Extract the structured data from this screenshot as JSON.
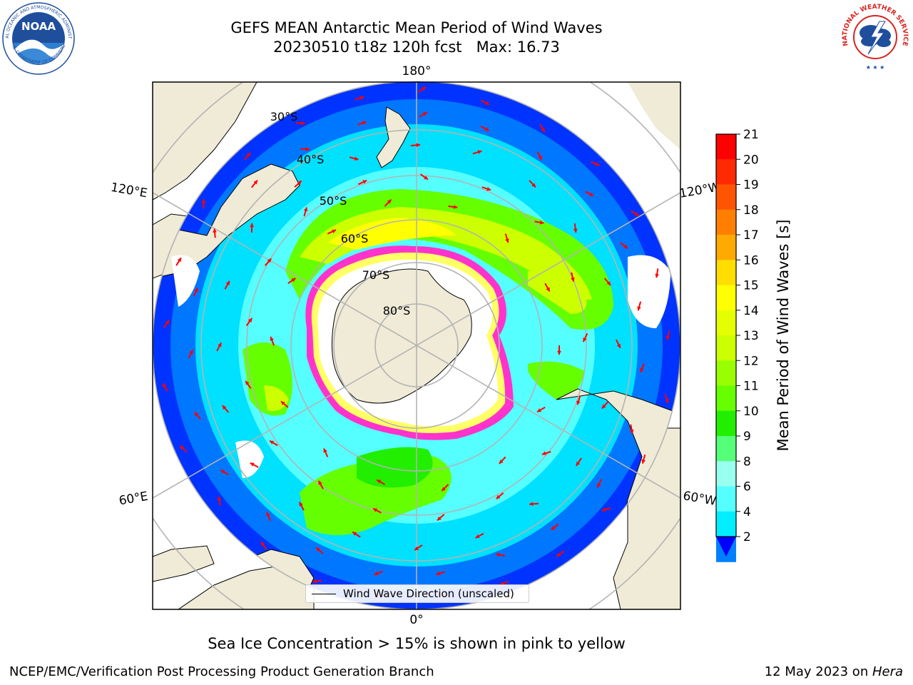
{
  "header": {
    "title_line1": "GEFS MEAN Antarctic Mean Period of Wind Waves",
    "title_line2": "20230510 t18z 120h fcst   Max: 16.73"
  },
  "map": {
    "projection": "south-polar-stereographic",
    "longitude_labels": {
      "top": "180°",
      "bottom": "0°",
      "upper_left": "120°E",
      "upper_right": "120°W",
      "lower_left": "60°E",
      "lower_right": "60°W"
    },
    "latitude_labels": [
      "30°S",
      "40°S",
      "50°S",
      "60°S",
      "70°S",
      "80°S"
    ],
    "legend_label": "Wind Wave Direction (unscaled)",
    "colors": {
      "land": "#efebd7",
      "sea_ice_low": "#ff33cc",
      "sea_ice_high": "#ffff66",
      "arrows": "#ff0000",
      "graticule": "#b3b3b3"
    },
    "ice_note": "Sea Ice Concentration > 15% is shown in pink to yellow"
  },
  "colorbar": {
    "label": "Mean Period of Wind Waves [s]",
    "ticks": [
      "21",
      "20",
      "19",
      "18",
      "17",
      "16",
      "15",
      "14",
      "13",
      "12",
      "11",
      "10",
      "9",
      "8",
      "6",
      "4",
      "2"
    ],
    "colors": [
      "#ff0000",
      "#ff2a00",
      "#ff5500",
      "#ff8000",
      "#ffaa00",
      "#ffdd00",
      "#ffff00",
      "#e6ff00",
      "#ccff00",
      "#99ff00",
      "#66ff00",
      "#22ee00",
      "#55ff77",
      "#99ffee",
      "#55ffff",
      "#00eeff",
      "#0080ff"
    ],
    "under_color": "#0000ff"
  },
  "footer": {
    "left": "NCEP/EMC/Verification Post Processing Product Generation Branch",
    "date": "12 May 2023 on ",
    "machine": "Hera"
  },
  "logos": {
    "noaa_text": "NOAA",
    "noaa_ring_top": "NATIONAL OCEANIC AND ATMOSPHERIC ADMINISTRATION",
    "noaa_ring_bottom": "U.S. DEPARTMENT OF COMMERCE",
    "nws_ring": "NATIONAL WEATHER SERVICE"
  }
}
